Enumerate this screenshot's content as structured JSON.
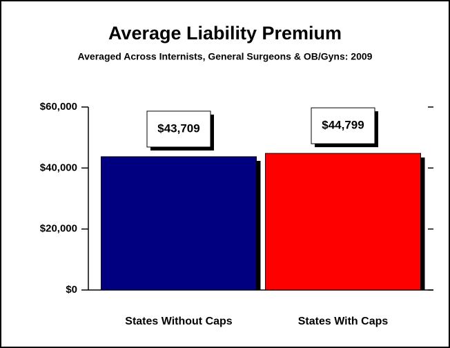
{
  "chart_data": {
    "type": "bar",
    "title": "Average Liability Premium",
    "subtitle": "Averaged Across Internists, General Surgeons & OB/Gyns: 2009",
    "categories": [
      "States Without Caps",
      "States With Caps"
    ],
    "values": [
      43709,
      44799
    ],
    "value_labels": [
      "$43,709",
      "$44,799"
    ],
    "colors": [
      "#000080",
      "#ff0000"
    ],
    "ylim": [
      0,
      60000
    ],
    "yticks": [
      {
        "value": 0,
        "label": "$0"
      },
      {
        "value": 20000,
        "label": "$20,000"
      },
      {
        "value": 40000,
        "label": "$40,000"
      },
      {
        "value": 60000,
        "label": "$60,000"
      }
    ]
  }
}
